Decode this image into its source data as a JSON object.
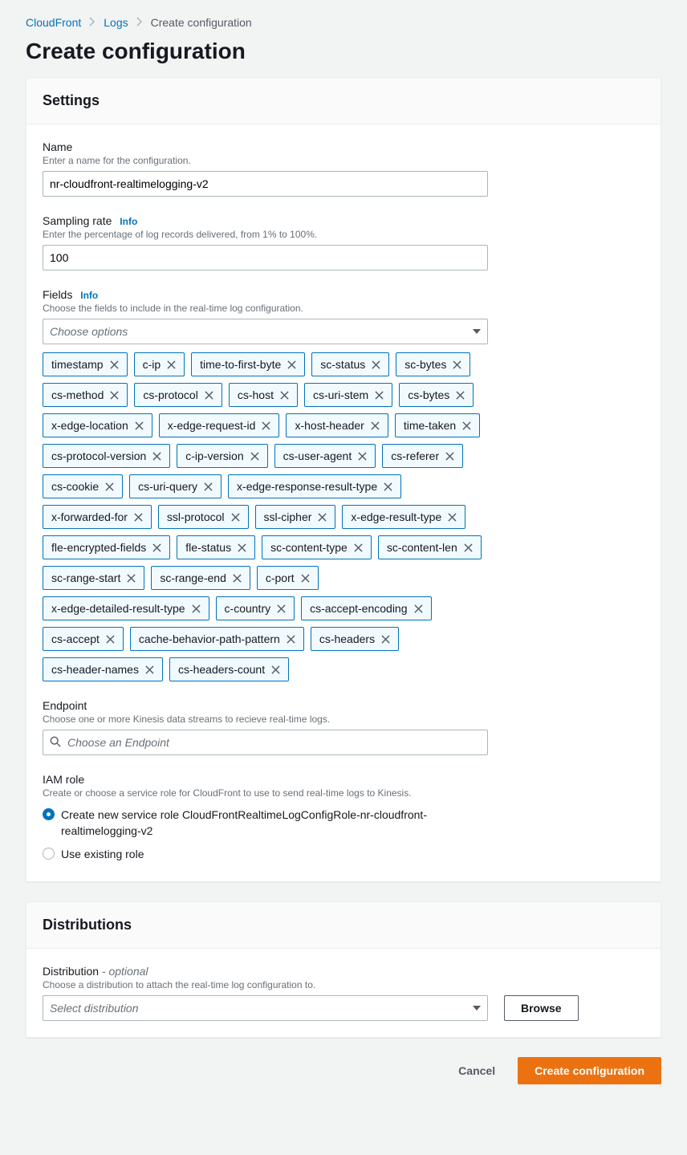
{
  "breadcrumb": {
    "items": [
      "CloudFront",
      "Logs"
    ],
    "current": "Create configuration"
  },
  "page_title": "Create configuration",
  "settings": {
    "panel_title": "Settings",
    "name": {
      "label": "Name",
      "desc": "Enter a name for the configuration.",
      "value": "nr-cloudfront-realtimelogging-v2"
    },
    "sampling_rate": {
      "label": "Sampling rate",
      "info": "Info",
      "desc": "Enter the percentage of log records delivered, from 1% to 100%.",
      "value": "100"
    },
    "fields": {
      "label": "Fields",
      "info": "Info",
      "desc": "Choose the fields to include in the real-time log configuration.",
      "placeholder": "Choose options",
      "tokens": [
        "timestamp",
        "c-ip",
        "time-to-first-byte",
        "sc-status",
        "sc-bytes",
        "cs-method",
        "cs-protocol",
        "cs-host",
        "cs-uri-stem",
        "cs-bytes",
        "x-edge-location",
        "x-edge-request-id",
        "x-host-header",
        "time-taken",
        "cs-protocol-version",
        "c-ip-version",
        "cs-user-agent",
        "cs-referer",
        "cs-cookie",
        "cs-uri-query",
        "x-edge-response-result-type",
        "x-forwarded-for",
        "ssl-protocol",
        "ssl-cipher",
        "x-edge-result-type",
        "fle-encrypted-fields",
        "fle-status",
        "sc-content-type",
        "sc-content-len",
        "sc-range-start",
        "sc-range-end",
        "c-port",
        "x-edge-detailed-result-type",
        "c-country",
        "cs-accept-encoding",
        "cs-accept",
        "cache-behavior-path-pattern",
        "cs-headers",
        "cs-header-names",
        "cs-headers-count"
      ],
      "token_bg": "#f1faff",
      "token_border": "#0073bb"
    },
    "endpoint": {
      "label": "Endpoint",
      "desc": "Choose one or more Kinesis data streams to recieve real-time logs.",
      "placeholder": "Choose an Endpoint"
    },
    "iam_role": {
      "label": "IAM role",
      "desc": "Create or choose a service role for CloudFront to use to send real-time logs to Kinesis.",
      "option_create": "Create new service role CloudFrontRealtimeLogConfigRole-nr-cloudfront-realtimelogging-v2",
      "option_existing": "Use existing role",
      "selected": "create"
    }
  },
  "distributions": {
    "panel_title": "Distributions",
    "label": "Distribution",
    "optional": " - optional",
    "desc": "Choose a distribution to attach the real-time log configuration to.",
    "placeholder": "Select distribution",
    "browse": "Browse"
  },
  "actions": {
    "cancel": "Cancel",
    "create": "Create configuration"
  },
  "colors": {
    "link": "#0073bb",
    "primary_btn": "#ec7211",
    "bg": "#f2f3f3",
    "border": "#aab7b8",
    "muted": "#687078"
  }
}
